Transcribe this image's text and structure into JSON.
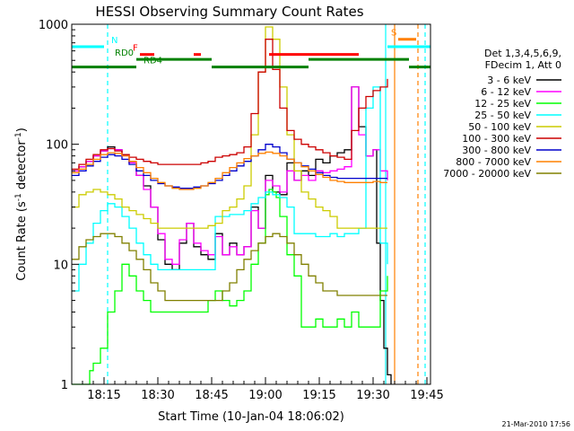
{
  "chart_data": {
    "type": "line",
    "title": "HESSI Observing Summary Count Rates",
    "xlabel": "Start Time (10-Jan-04 18:06:02)",
    "ylabel_main": "Count Rate (s",
    "ylabel_sup1": "-1",
    "ylabel_mid": " detector",
    "ylabel_sup2": "-1",
    "ylabel_end": ")",
    "y_scale": "log",
    "ylim": [
      1,
      1000
    ],
    "xlim_minutes": [
      0,
      100
    ],
    "x_start": "18:06:02",
    "x_ticks": [
      {
        "label": "18:15",
        "m": 9
      },
      {
        "label": "18:30",
        "m": 24
      },
      {
        "label": "18:45",
        "m": 39
      },
      {
        "label": "19:00",
        "m": 54
      },
      {
        "label": "19:15",
        "m": 69
      },
      {
        "label": "19:30",
        "m": 84
      },
      {
        "label": "19:45",
        "m": 99
      }
    ],
    "y_ticks": [
      {
        "label": "1000",
        "v": 1000
      },
      {
        "label": "100",
        "v": 100
      },
      {
        "label": "10",
        "v": 10
      },
      {
        "label": "1",
        "v": 1
      }
    ],
    "legend_header": [
      "Det 1,3,4,5,6,9,",
      "FDecim 1, Att 0"
    ],
    "series": [
      {
        "name": "3 - 6 keV",
        "color": "#000000",
        "x": [
          0,
          2,
          4,
          6,
          8,
          10,
          12,
          14,
          16,
          18,
          20,
          22,
          24,
          26,
          28,
          30,
          32,
          34,
          36,
          38,
          40,
          42,
          44,
          46,
          48,
          50,
          52,
          54,
          56,
          58,
          60,
          62,
          64,
          66,
          68,
          70,
          72,
          74,
          76,
          78,
          80,
          82,
          84,
          85,
          86,
          87,
          88,
          89
        ],
        "y": [
          60,
          65,
          72,
          80,
          88,
          95,
          90,
          82,
          70,
          55,
          45,
          30,
          16,
          10,
          9,
          15,
          22,
          14,
          12,
          11,
          18,
          12,
          15,
          12,
          14,
          30,
          20,
          55,
          40,
          38,
          70,
          50,
          60,
          55,
          75,
          70,
          80,
          85,
          90,
          300,
          140,
          80,
          90,
          15,
          5,
          2,
          1.2,
          1
        ]
      },
      {
        "name": "6 - 12 keV",
        "color": "#ff00ff",
        "x": [
          0,
          2,
          4,
          6,
          8,
          10,
          12,
          14,
          16,
          18,
          20,
          22,
          24,
          26,
          28,
          30,
          32,
          34,
          36,
          38,
          40,
          42,
          44,
          46,
          48,
          50,
          52,
          54,
          56,
          58,
          60,
          62,
          64,
          66,
          68,
          70,
          72,
          74,
          76,
          78,
          80,
          82,
          84,
          86,
          88
        ],
        "y": [
          60,
          65,
          72,
          80,
          88,
          92,
          90,
          80,
          70,
          55,
          42,
          30,
          18,
          11,
          10,
          16,
          22,
          15,
          13,
          12,
          17,
          12,
          14,
          12,
          14,
          28,
          20,
          50,
          45,
          40,
          60,
          50,
          55,
          50,
          60,
          58,
          60,
          62,
          65,
          300,
          120,
          80,
          90,
          60,
          50
        ]
      },
      {
        "name": "12 - 25 keV",
        "color": "#00ff00",
        "x": [
          0,
          2,
          4,
          5,
          6,
          8,
          10,
          12,
          14,
          16,
          18,
          20,
          22,
          24,
          26,
          28,
          30,
          32,
          34,
          36,
          38,
          40,
          42,
          44,
          46,
          48,
          50,
          52,
          54,
          55,
          56,
          57,
          58,
          60,
          62,
          64,
          66,
          68,
          70,
          72,
          74,
          76,
          78,
          80,
          82,
          84,
          86,
          88
        ],
        "y": [
          1,
          1,
          1,
          1.3,
          1.5,
          2,
          4,
          6,
          10,
          8,
          6,
          5,
          4,
          4,
          4,
          4,
          4,
          4,
          4,
          4,
          5,
          6,
          5,
          4.5,
          5,
          6,
          10,
          15,
          38,
          42,
          40,
          36,
          25,
          12,
          8,
          3,
          3,
          3.5,
          3,
          3,
          3.5,
          3,
          4,
          3,
          3,
          3,
          6,
          8
        ]
      },
      {
        "name": "25 - 50 keV",
        "color": "#00ffff",
        "x": [
          0,
          2,
          4,
          6,
          8,
          10,
          12,
          14,
          16,
          18,
          20,
          22,
          24,
          26,
          28,
          30,
          32,
          34,
          36,
          38,
          39,
          40,
          42,
          44,
          46,
          48,
          50,
          52,
          54,
          56,
          58,
          60,
          62,
          64,
          66,
          68,
          70,
          72,
          74,
          76,
          78,
          80,
          82,
          84,
          86,
          88
        ],
        "y": [
          6,
          10,
          15,
          22,
          28,
          32,
          30,
          25,
          20,
          15,
          12,
          10,
          9,
          9,
          9,
          9,
          9,
          9,
          9,
          9,
          9,
          25,
          25,
          26,
          26,
          28,
          32,
          36,
          40,
          38,
          36,
          30,
          18,
          18,
          18,
          17,
          17,
          18,
          17,
          18,
          18,
          20,
          200,
          300,
          15,
          10
        ]
      },
      {
        "name": "50 - 100 keV",
        "color": "#cccc00",
        "x": [
          0,
          2,
          4,
          6,
          8,
          10,
          12,
          14,
          16,
          18,
          20,
          22,
          24,
          26,
          28,
          30,
          32,
          34,
          36,
          38,
          40,
          42,
          44,
          46,
          48,
          50,
          52,
          54,
          56,
          58,
          60,
          62,
          64,
          66,
          68,
          70,
          72,
          74,
          76,
          78,
          80,
          82,
          84,
          86,
          88
        ],
        "y": [
          30,
          38,
          40,
          42,
          40,
          38,
          35,
          30,
          28,
          26,
          24,
          22,
          20,
          20,
          20,
          20,
          20,
          20,
          20,
          21,
          22,
          28,
          30,
          35,
          45,
          120,
          400,
          950,
          750,
          300,
          120,
          60,
          40,
          35,
          30,
          28,
          25,
          20,
          20,
          20,
          20,
          20,
          20,
          20,
          20
        ]
      },
      {
        "name": "100 - 300 keV",
        "color": "#cc0000",
        "x": [
          0,
          2,
          4,
          6,
          8,
          10,
          12,
          14,
          16,
          18,
          20,
          22,
          24,
          26,
          28,
          30,
          32,
          34,
          36,
          38,
          40,
          42,
          44,
          46,
          48,
          50,
          52,
          54,
          56,
          58,
          60,
          62,
          64,
          66,
          68,
          70,
          72,
          74,
          76,
          78,
          80,
          82,
          84,
          86,
          88
        ],
        "y": [
          62,
          68,
          75,
          82,
          90,
          92,
          88,
          82,
          78,
          75,
          72,
          70,
          68,
          68,
          68,
          68,
          68,
          68,
          70,
          72,
          78,
          80,
          82,
          85,
          95,
          180,
          400,
          750,
          420,
          200,
          130,
          110,
          100,
          95,
          90,
          85,
          80,
          78,
          75,
          130,
          200,
          250,
          280,
          300,
          350
        ]
      },
      {
        "name": "300 - 800 keV",
        "color": "#0000cc",
        "x": [
          0,
          2,
          4,
          6,
          8,
          10,
          12,
          14,
          16,
          18,
          20,
          22,
          24,
          26,
          28,
          30,
          32,
          34,
          36,
          38,
          40,
          42,
          44,
          46,
          48,
          50,
          52,
          54,
          56,
          58,
          60,
          62,
          64,
          66,
          68,
          70,
          72,
          74,
          76,
          78,
          80,
          82,
          84,
          86,
          88
        ],
        "y": [
          55,
          60,
          66,
          72,
          78,
          82,
          80,
          75,
          68,
          60,
          55,
          50,
          47,
          45,
          44,
          43,
          43,
          44,
          45,
          47,
          50,
          55,
          60,
          66,
          72,
          80,
          90,
          100,
          95,
          85,
          75,
          70,
          66,
          62,
          58,
          55,
          53,
          52,
          52,
          52,
          52,
          52,
          52,
          52,
          52
        ]
      },
      {
        "name": "800 - 7000 keV",
        "color": "#ff8000",
        "x": [
          0,
          2,
          4,
          6,
          8,
          10,
          12,
          14,
          16,
          18,
          20,
          22,
          24,
          26,
          28,
          30,
          32,
          34,
          36,
          38,
          40,
          42,
          44,
          46,
          48,
          50,
          52,
          54,
          56,
          58,
          60,
          62,
          64,
          66,
          68,
          70,
          72,
          74,
          76,
          78,
          80,
          82,
          84,
          86,
          88
        ],
        "y": [
          58,
          62,
          68,
          75,
          82,
          85,
          84,
          80,
          72,
          64,
          58,
          52,
          48,
          45,
          43,
          42,
          42,
          43,
          45,
          48,
          52,
          58,
          64,
          70,
          76,
          80,
          84,
          86,
          84,
          80,
          75,
          70,
          65,
          60,
          56,
          53,
          50,
          49,
          48,
          48,
          48,
          48,
          49,
          48,
          48
        ]
      },
      {
        "name": "7000 - 20000 keV",
        "color": "#808000",
        "x": [
          0,
          2,
          4,
          6,
          8,
          10,
          12,
          14,
          16,
          18,
          20,
          22,
          24,
          26,
          28,
          30,
          32,
          34,
          36,
          38,
          40,
          42,
          44,
          46,
          48,
          50,
          52,
          54,
          56,
          58,
          60,
          62,
          64,
          66,
          68,
          70,
          72,
          74,
          76,
          78,
          80,
          82,
          84,
          86,
          88
        ],
        "y": [
          11,
          14,
          16,
          17,
          18,
          18,
          17,
          15,
          13,
          11,
          9,
          7,
          6,
          5,
          5,
          5,
          5,
          5,
          5,
          5,
          5,
          6,
          7,
          9,
          11,
          13,
          15,
          17,
          18,
          17,
          15,
          12,
          10,
          8,
          7,
          6,
          6,
          5.5,
          5.5,
          5.5,
          5.5,
          5.5,
          5.5,
          5.5,
          5.5
        ]
      }
    ],
    "flag_bars": [
      {
        "label": "N",
        "color": "#00ffff",
        "row_value": 650,
        "label_m": 11,
        "segments": [
          [
            0,
            9
          ],
          [
            88,
            100
          ]
        ]
      },
      {
        "label": "F",
        "color": "#ff0000",
        "row_value": 560,
        "label_m": 17,
        "segments": [
          [
            19,
            23
          ],
          [
            34,
            36
          ],
          [
            55,
            80
          ]
        ]
      },
      {
        "label": "RD0",
        "color": "#008000",
        "row_value": 510,
        "label_m": 12,
        "segments": [
          [
            18,
            39
          ],
          [
            66,
            94
          ]
        ]
      },
      {
        "label": "RD4",
        "color": "#008000",
        "row_value": 440,
        "label_m": 20,
        "segments": [
          [
            0,
            18
          ],
          [
            39,
            66
          ],
          [
            94,
            100
          ]
        ]
      },
      {
        "label": "S",
        "color": "#ff8000",
        "row_value": 750,
        "label_m": 89,
        "segments": [
          [
            91,
            96
          ]
        ]
      }
    ],
    "vlines": [
      {
        "m": 10,
        "color": "#00ffff",
        "style": "dashed"
      },
      {
        "m": 87.5,
        "color": "#00ffff",
        "style": "solid"
      },
      {
        "m": 90,
        "color": "#ff8000",
        "style": "solid"
      },
      {
        "m": 96.5,
        "color": "#ff8000",
        "style": "dashed"
      },
      {
        "m": 98.5,
        "color": "#00ffff",
        "style": "dashed"
      }
    ],
    "date_stamp": "21-Mar-2010 17:56"
  }
}
